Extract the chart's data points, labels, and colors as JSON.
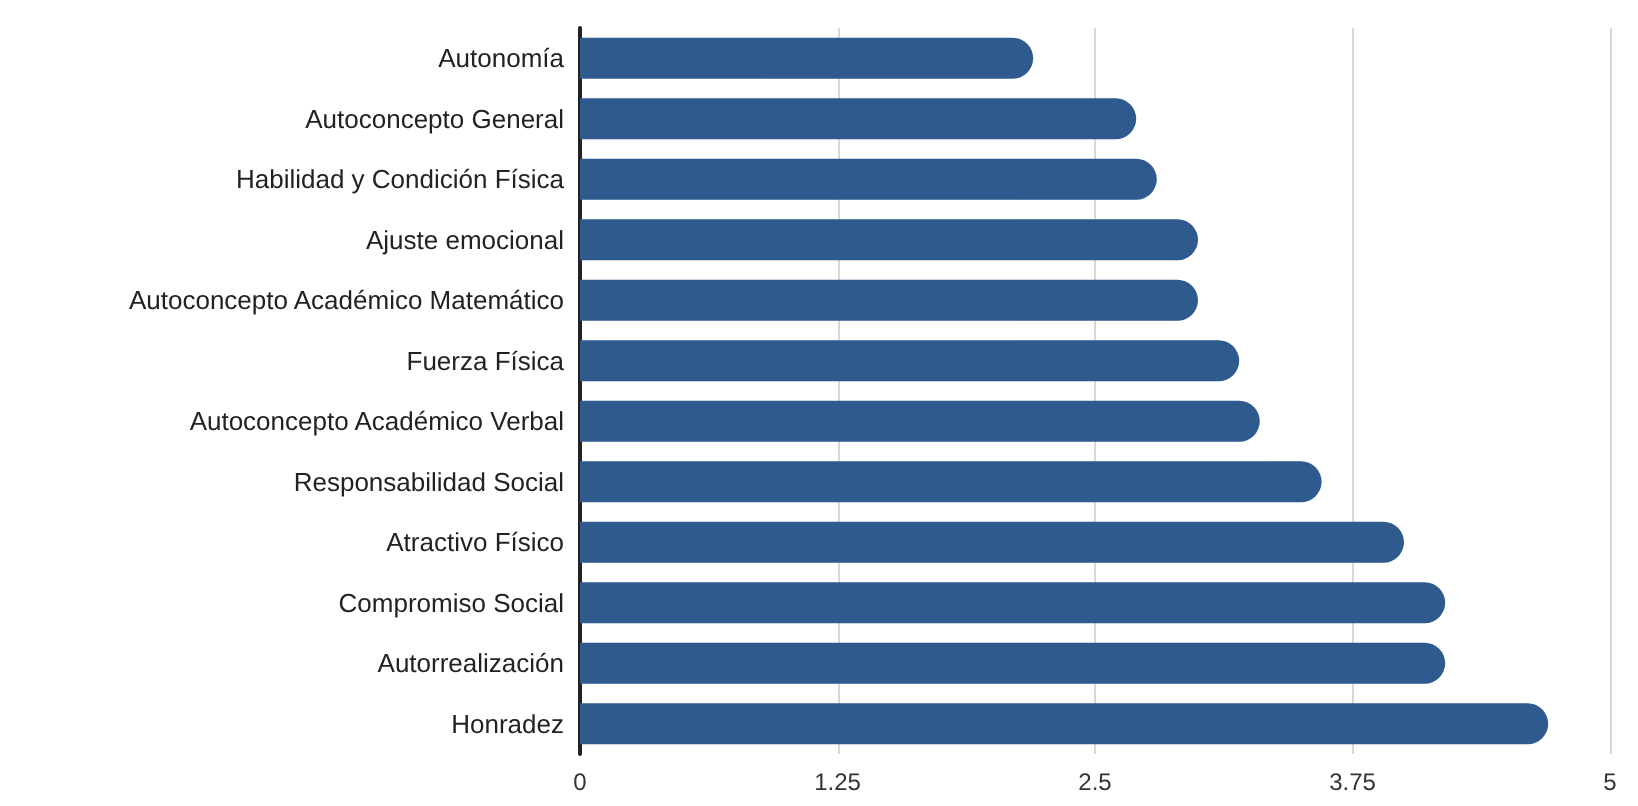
{
  "chart_data": {
    "type": "bar",
    "orientation": "horizontal",
    "categories": [
      "Autonomía",
      "Autoconcepto General",
      "Habilidad y Condición Física",
      "Ajuste emocional",
      "Autoconcepto Académico Matemático",
      "Fuerza Física",
      "Autoconcepto Académico Verbal",
      "Responsabilidad Social",
      "Atractivo Físico",
      "Compromiso Social",
      "Autorrealización",
      "Honradez"
    ],
    "values": [
      2.2,
      2.7,
      2.8,
      3.0,
      3.0,
      3.2,
      3.3,
      3.6,
      4.0,
      4.2,
      4.2,
      4.7
    ],
    "color": "#2e5a8e",
    "xlim": [
      0,
      5
    ],
    "xticks": [
      0,
      1.25,
      2.5,
      3.75,
      5
    ],
    "grid": "x"
  }
}
